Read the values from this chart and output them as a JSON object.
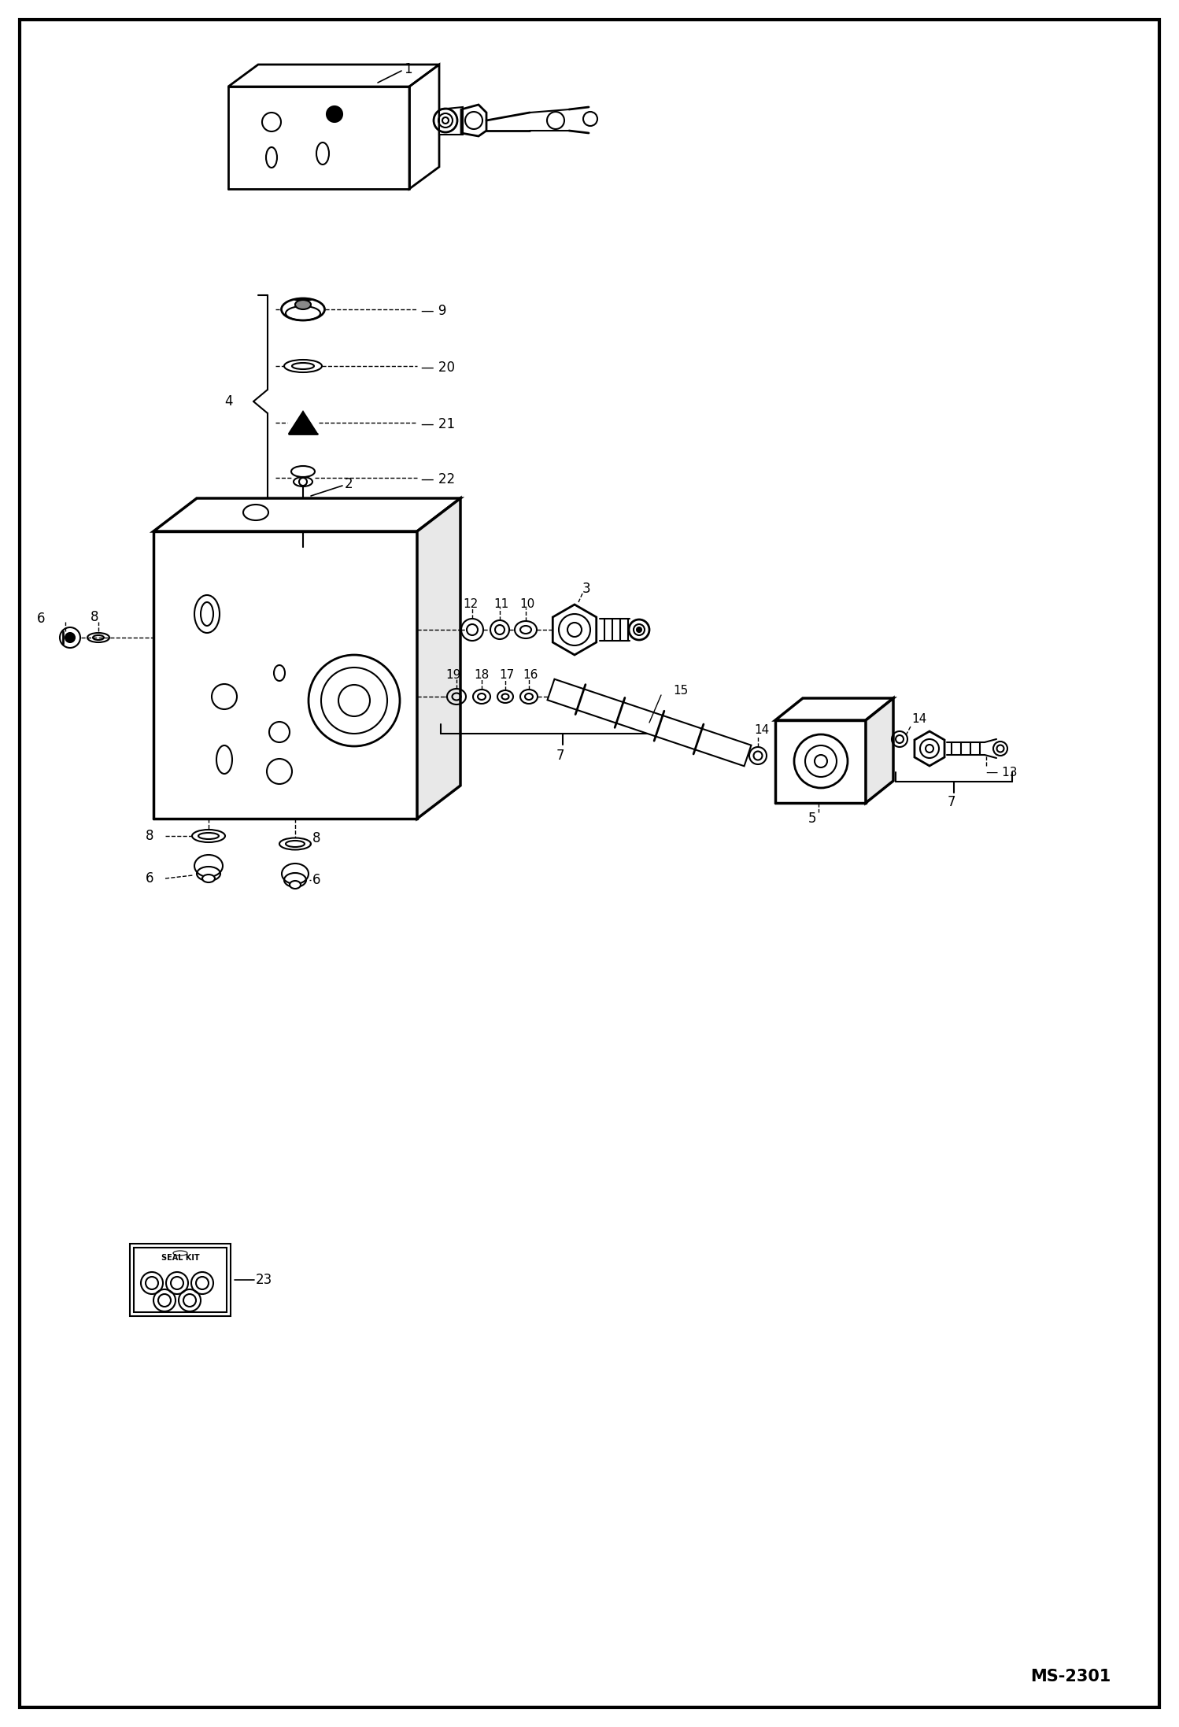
{
  "page_width": 14.98,
  "page_height": 21.94,
  "dpi": 100,
  "background": "#ffffff",
  "border_color": "#000000",
  "part_color": "#000000",
  "ms_label": "MS-2301",
  "ms_fontsize": 15,
  "label_fontsize": 12
}
